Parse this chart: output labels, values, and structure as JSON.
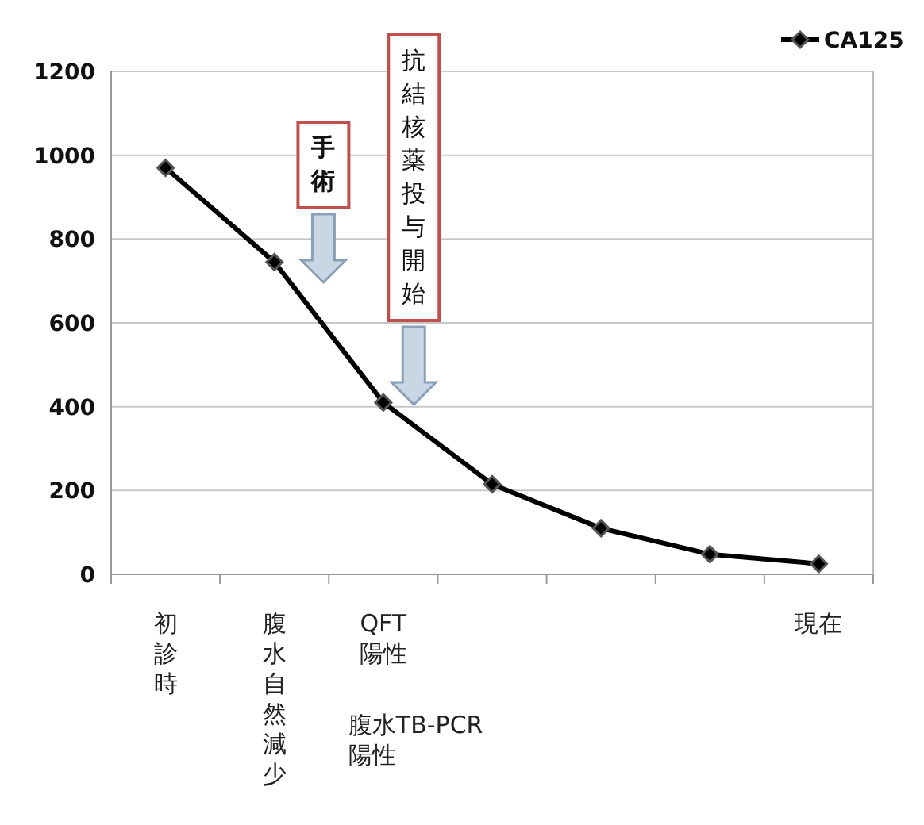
{
  "chart_data": {
    "type": "line",
    "categories": [
      "初診時",
      "腹水自然減少",
      "QFT陽性",
      null,
      null,
      null,
      "現在"
    ],
    "series": [
      {
        "name": "CA125",
        "color": "#000000",
        "values": [
          970,
          745,
          410,
          215,
          110,
          48,
          25
        ]
      }
    ],
    "ylim": [
      0,
      1200
    ],
    "yticks": [
      0,
      200,
      400,
      600,
      800,
      1000,
      1200
    ],
    "grid": "y",
    "legend": "top right",
    "marker": "diamond",
    "line_style": "solid",
    "annotations": [
      "手術",
      "抗結核薬投与開始",
      "腹水TB-PCR陽性"
    ]
  }
}
